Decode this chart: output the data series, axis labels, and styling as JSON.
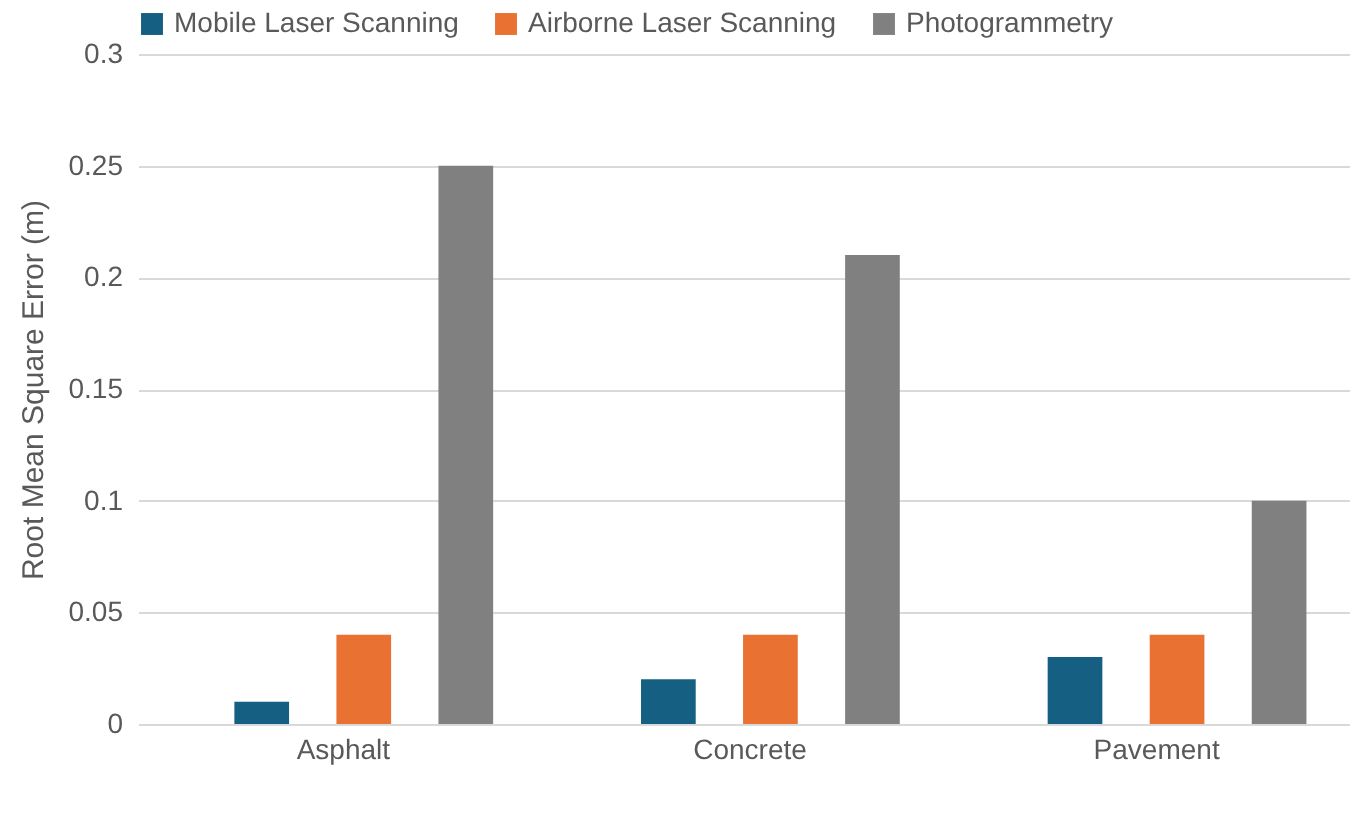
{
  "chart_data": {
    "type": "bar",
    "ylabel": "Root Mean Square Error (m)",
    "categories": [
      "Asphalt",
      "Concrete",
      "Pavement"
    ],
    "series": [
      {
        "name": "Mobile Laser Scanning",
        "color": "#156082",
        "values": [
          0.01,
          0.02,
          0.03
        ]
      },
      {
        "name": "Airborne Laser Scanning",
        "color": "#e97132",
        "values": [
          0.04,
          0.04,
          0.04
        ]
      },
      {
        "name": "Photogrammetry",
        "color": "#808080",
        "values": [
          0.25,
          0.21,
          0.1
        ]
      }
    ],
    "ylim": [
      0,
      0.3
    ],
    "yticks": [
      0,
      0.05,
      0.1,
      0.15,
      0.2,
      0.25,
      0.3
    ],
    "grid": "y",
    "legend": "top left"
  }
}
